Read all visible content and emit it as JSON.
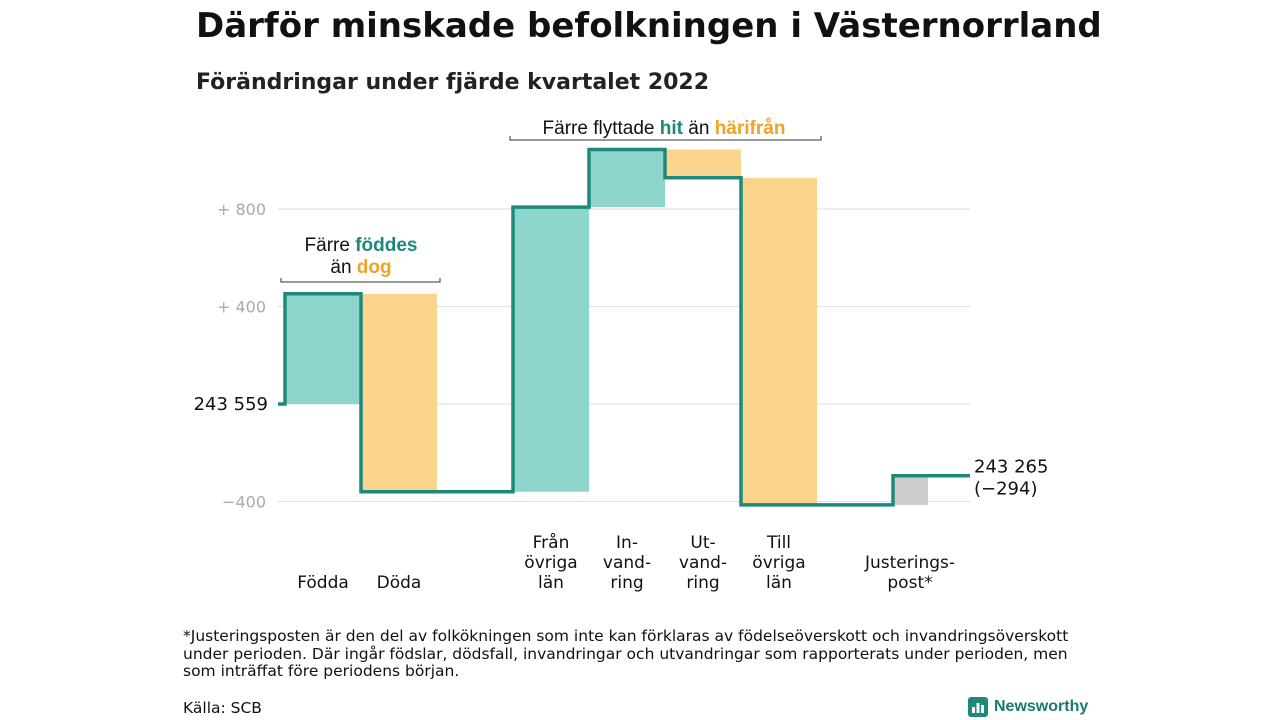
{
  "title": "Därför minskade befolkningen i Västernorrland",
  "subtitle": "Förändringar under fjärde kvartalet 2022",
  "footnote": "*Justeringsposten är den del av folkökningen som inte kan förklaras av födelseöverskott och invandringsöverskott under perioden. Där ingår födslar, dödsfall, invandringar och utvandringar som rapporterats under perioden, men som inträffat före periodens början.",
  "source": "Källa: SCB",
  "brand": "Newsworthy",
  "colors": {
    "increase": "#8ed5cc",
    "decrease": "#fad48c",
    "adjustment": "#cccccc",
    "line": "#1b8a7c",
    "highlight_teal": "#1b8a7c",
    "highlight_orange": "#f0a324",
    "grid": "#e3e3e3",
    "axis_label": "#aaaaaa"
  },
  "annotations": {
    "births": {
      "l1_pre": "Färre ",
      "l1_hl": "föddes",
      "l2_pre": "än ",
      "l2_hl": "dog"
    },
    "migration": {
      "pre": "Färre flyttade ",
      "hl1": "hit",
      "mid": " än ",
      "hl2": "härifrån"
    }
  },
  "chart_data": {
    "type": "waterfall",
    "title": "Därför minskade befolkningen i Västernorrland",
    "subtitle": "Förändringar under fjärde kvartalet 2022",
    "y_unit": "change relative to start population",
    "ylim": [
      -430,
      1120
    ],
    "y_ticks": [
      {
        "value": 800,
        "label": "+ 800"
      },
      {
        "value": 400,
        "label": "+ 400"
      },
      {
        "value": -400,
        "label": "−400"
      }
    ],
    "start": {
      "value": 0,
      "label": "243 559"
    },
    "end": {
      "value": -294,
      "label_line1": "243 265",
      "label_line2": "(−294)"
    },
    "steps": [
      {
        "category": [
          "Födda"
        ],
        "delta": 452,
        "type": "increase"
      },
      {
        "category": [
          "Döda"
        ],
        "delta": -812,
        "type": "decrease"
      },
      {
        "category": [
          "Från",
          "övriga",
          "län"
        ],
        "delta": 1168,
        "type": "increase"
      },
      {
        "category": [
          "In-",
          "vand-",
          "ring"
        ],
        "delta": 236,
        "type": "increase"
      },
      {
        "category": [
          "Ut-",
          "vand-",
          "ring"
        ],
        "delta": -116,
        "type": "decrease"
      },
      {
        "category": [
          "Till",
          "övriga",
          "län"
        ],
        "delta": -1342,
        "type": "decrease"
      },
      {
        "category": [
          "Justerings-",
          "post*"
        ],
        "delta": 120,
        "type": "adjustment"
      }
    ]
  }
}
